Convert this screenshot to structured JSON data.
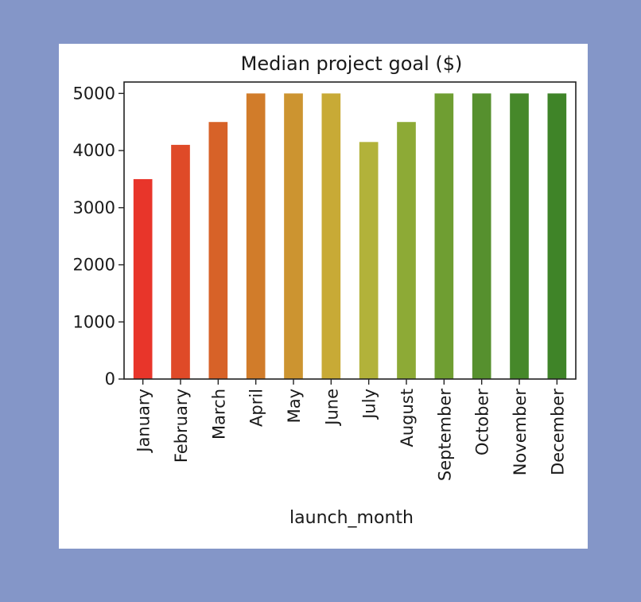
{
  "page": {
    "background": "#8496c8",
    "figure_background": "#ffffff"
  },
  "chart_data": {
    "type": "bar",
    "title": "Median project goal ($)",
    "xlabel": "launch_month",
    "ylabel": "",
    "categories": [
      "January",
      "February",
      "March",
      "April",
      "May",
      "June",
      "July",
      "August",
      "September",
      "October",
      "November",
      "December"
    ],
    "values": [
      3500,
      4100,
      4500,
      5000,
      5000,
      5000,
      4150,
      4500,
      5000,
      5000,
      5000,
      5000
    ],
    "colors": [
      "#e8352a",
      "#df4a28",
      "#d76228",
      "#d17c2a",
      "#cc9430",
      "#c8aa36",
      "#b2b23a",
      "#8daa36",
      "#6f9e32",
      "#56902e",
      "#46882a",
      "#3f8428"
    ],
    "ylim": [
      0,
      5200
    ],
    "yticks": [
      0,
      1000,
      2000,
      3000,
      4000,
      5000
    ],
    "grid": false,
    "legend": "none"
  }
}
